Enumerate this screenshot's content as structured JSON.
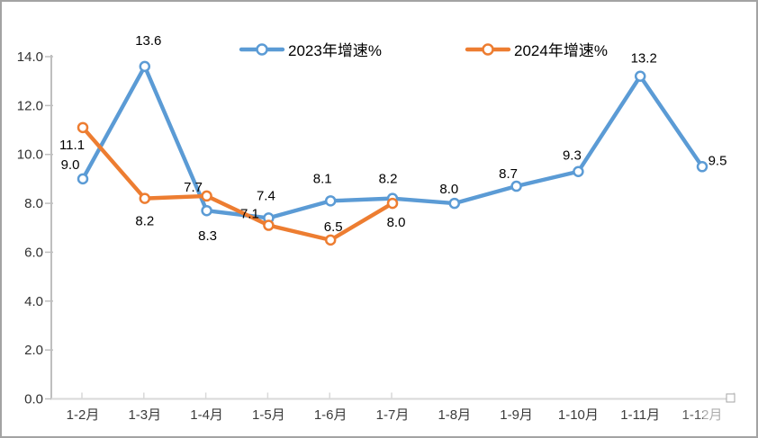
{
  "chart_data": {
    "type": "line",
    "title": "",
    "categories": [
      "1-2月",
      "1-3月",
      "1-4月",
      "1-5月",
      "1-6月",
      "1-7月",
      "1-8月",
      "1-9月",
      "1-10月",
      "1-11月",
      "1-12月"
    ],
    "series": [
      {
        "name": "2023年增速%",
        "color": "#5B9BD5",
        "values": [
          9.0,
          13.6,
          7.7,
          7.4,
          8.1,
          8.2,
          8.0,
          8.7,
          9.3,
          13.2,
          9.5
        ],
        "labels": [
          "9.0",
          "13.6",
          "7.7",
          "7.4",
          "8.1",
          "8.2",
          "8.0",
          "8.7",
          "9.3",
          "13.2",
          "9.5"
        ],
        "label_offsets": [
          [
            -14,
            -11
          ],
          [
            4,
            -24
          ],
          [
            -15,
            -21
          ],
          [
            -3,
            -20
          ],
          [
            -9,
            -20
          ],
          [
            -5,
            -17
          ],
          [
            -6,
            -11
          ],
          [
            -9,
            -9
          ],
          [
            -7,
            -13
          ],
          [
            4,
            -15
          ],
          [
            17,
            -2
          ]
        ]
      },
      {
        "name": "2024年增速%",
        "color": "#ED7D31",
        "values": [
          11.1,
          8.2,
          8.3,
          7.1,
          6.5,
          8.0
        ],
        "labels": [
          "11.1",
          "8.2",
          "8.3",
          "7.1",
          "6.5",
          "8.0"
        ],
        "label_offsets": [
          [
            -12,
            24
          ],
          [
            0,
            30
          ],
          [
            1,
            49
          ],
          [
            -21,
            -8
          ],
          [
            3,
            -10
          ],
          [
            4,
            26
          ]
        ]
      }
    ],
    "ylim": [
      0,
      14
    ],
    "ytick_step": 2,
    "ytick_labels": [
      "0.0",
      "2.0",
      "4.0",
      "6.0",
      "8.0",
      "10.0",
      "12.0",
      "14.0"
    ],
    "xlabel": "",
    "ylabel": "",
    "grid": false,
    "legend_position": "top",
    "marker_style": "open-circle",
    "value_label_color": "#000000",
    "axis_line_color": "#bfbfbf",
    "x_axis_line_color": "#d9d9d9"
  },
  "artifacts": {
    "axis_selection_handle": true,
    "faded_last_x_label": true
  }
}
